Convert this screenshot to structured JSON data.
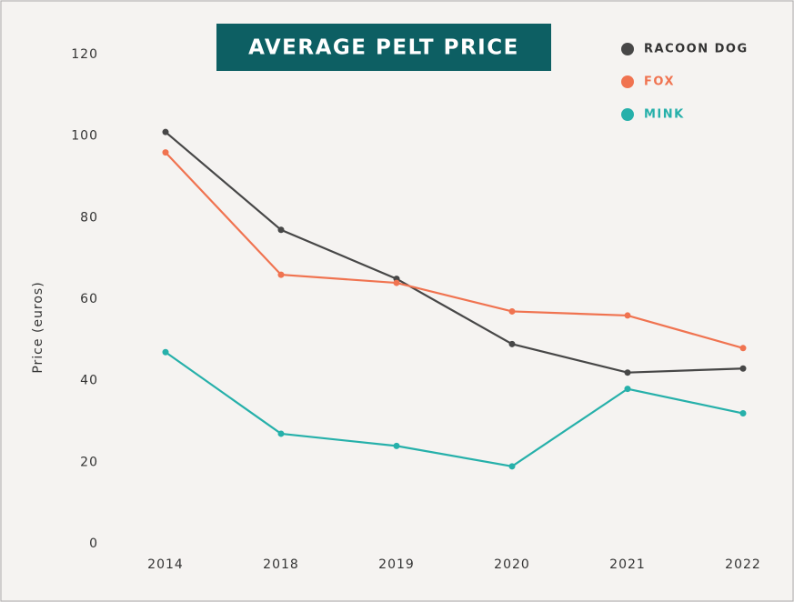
{
  "chart_data": {
    "type": "line",
    "title": "AVERAGE PELT PRICE",
    "y_label": "Price (euros)",
    "categories": [
      "2014",
      "2018",
      "2019",
      "2020",
      "2021",
      "2022"
    ],
    "series": [
      {
        "name": "RACOON DOG",
        "color": "#474747",
        "values": [
          101,
          77,
          65,
          49,
          42,
          43
        ]
      },
      {
        "name": "FOX",
        "color": "#f07350",
        "values": [
          96,
          66,
          64,
          57,
          56,
          48
        ]
      },
      {
        "name": "MINK",
        "color": "#26b0aa",
        "values": [
          47,
          27,
          24,
          19,
          38,
          32
        ]
      }
    ],
    "ylim": [
      0,
      120
    ],
    "yticks": [
      0,
      20,
      40,
      60,
      80,
      100,
      120
    ],
    "grid": false,
    "legend": "top-right"
  }
}
